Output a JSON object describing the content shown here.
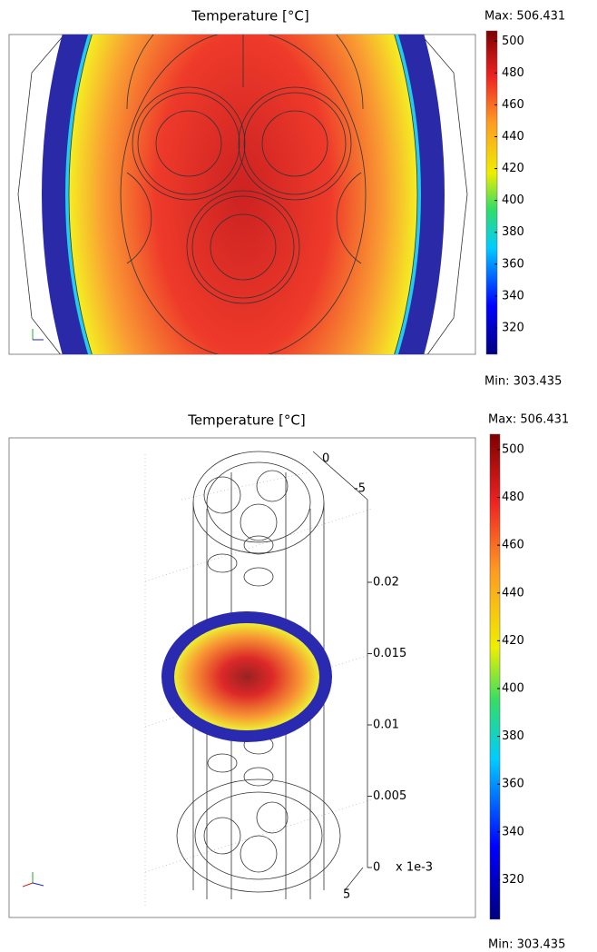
{
  "chart_data": [
    {
      "type": "heatmap",
      "title": "Temperature [°C]",
      "max_label": "Max: 506.431",
      "min_label": "Min: 303.435",
      "clim": [
        303.435,
        506.431
      ],
      "cticks": [
        320,
        340,
        360,
        380,
        400,
        420,
        440,
        460,
        480,
        500
      ]
    },
    {
      "type": "heatmap3d",
      "title": "Temperature [°C]",
      "max_label": "Max: 506.431",
      "min_label": "Min: 303.435",
      "clim": [
        303.435,
        506.431
      ],
      "cticks": [
        320,
        340,
        360,
        380,
        400,
        420,
        440,
        460,
        480,
        500
      ],
      "zlim": [
        0,
        0.02
      ],
      "zticks": [
        0,
        0.005,
        0.01,
        0.015,
        0.02
      ],
      "depth_ticks": [
        0,
        -5,
        5
      ],
      "scale_label": "x 1e-3"
    }
  ]
}
